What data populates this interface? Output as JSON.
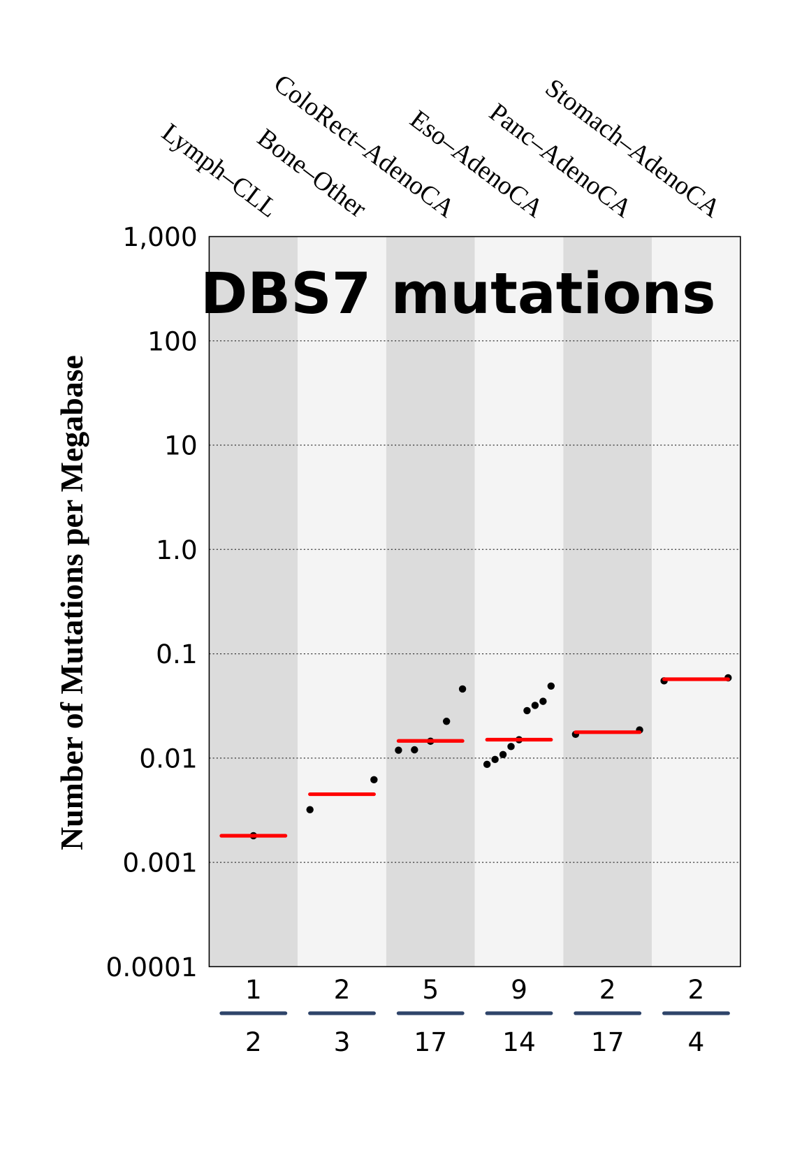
{
  "chart_data": {
    "type": "scatter",
    "title": "DBS7 mutations",
    "ylabel": "Number of Mutations per Megabase",
    "yscale": "log",
    "ylim": [
      0.0001,
      1000
    ],
    "yticks": [
      "0.0001",
      "0.001",
      "0.01",
      "0.1",
      "1.0",
      "10",
      "100",
      "1,000"
    ],
    "grid": "horizontal dotted",
    "colors": {
      "band_dark": "#dcdcdc",
      "band_light": "#f4f4f4",
      "median": "#ff0000",
      "point": "#000000",
      "count_rule": "#2e4469"
    },
    "categories": [
      {
        "name": "Lymph–CLL",
        "samples_with": "1",
        "samples_total": "2",
        "median": 0.0018,
        "values": [
          0.0018
        ]
      },
      {
        "name": "Bone–Other",
        "samples_with": "2",
        "samples_total": "3",
        "median": 0.0045,
        "values": [
          0.0032,
          0.0062
        ]
      },
      {
        "name": "ColoRect–AdenoCA",
        "samples_with": "5",
        "samples_total": "17",
        "median": 0.0146,
        "values": [
          0.0119,
          0.012,
          0.0145,
          0.0225,
          0.046
        ]
      },
      {
        "name": "Eso–AdenoCA",
        "samples_with": "9",
        "samples_total": "14",
        "median": 0.015,
        "values": [
          0.0087,
          0.0097,
          0.0108,
          0.0129,
          0.015,
          0.0285,
          0.032,
          0.035,
          0.049
        ]
      },
      {
        "name": "Panc–AdenoCA",
        "samples_with": "2",
        "samples_total": "17",
        "median": 0.0177,
        "values": [
          0.0169,
          0.0186
        ]
      },
      {
        "name": "Stomach–AdenoCA",
        "samples_with": "2",
        "samples_total": "4",
        "median": 0.057,
        "values": [
          0.055,
          0.0588
        ]
      }
    ]
  }
}
